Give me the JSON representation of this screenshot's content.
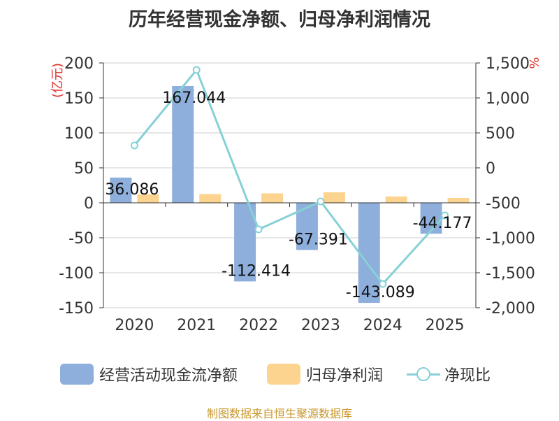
{
  "chart_data": {
    "type": "bar+line",
    "title": "历年经营现金净额、归母净利润情况",
    "categories": [
      "2020",
      "2021",
      "2022",
      "2023",
      "2024",
      "2025"
    ],
    "y_left": {
      "label": "(亿元)",
      "min": -150,
      "max": 200,
      "ticks": [
        200,
        150,
        100,
        50,
        0,
        -50,
        -100,
        -150
      ],
      "tick_labels": [
        "200",
        "150",
        "100",
        "50",
        "0",
        "-50",
        "-100",
        "-150"
      ]
    },
    "y_right": {
      "label": "%",
      "min": -2000,
      "max": 1500,
      "ticks": [
        1500,
        1000,
        500,
        0,
        -500,
        -1000,
        -1500,
        -2000
      ],
      "tick_labels": [
        "1,500",
        "1,000",
        "500",
        "0",
        "-500",
        "-1,000",
        "-1,500",
        "-2,000"
      ]
    },
    "series": [
      {
        "name": "经营活动现金流净额",
        "type": "bar",
        "axis": "left",
        "color": "#8eaedb",
        "values": [
          36.086,
          167.044,
          -112.414,
          -67.391,
          -143.089,
          -44.177
        ],
        "labels": [
          "36.086",
          "167.044",
          "-112.414",
          "-67.391",
          "-143.089",
          "-44.177"
        ]
      },
      {
        "name": "归母净利润",
        "type": "bar",
        "axis": "left",
        "color": "#fdd48f",
        "values": [
          12,
          12.5,
          13.5,
          15,
          9,
          7
        ]
      },
      {
        "name": "净现比",
        "type": "line",
        "axis": "right",
        "color": "#86d1d6",
        "values": [
          320,
          1400,
          -880,
          -480,
          -1660,
          -680
        ]
      }
    ]
  },
  "legend": {
    "bar1": "经营活动现金流净额",
    "bar2": "归母净利润",
    "line": "净现比"
  },
  "source": "制图数据来自恒生聚源数据库"
}
